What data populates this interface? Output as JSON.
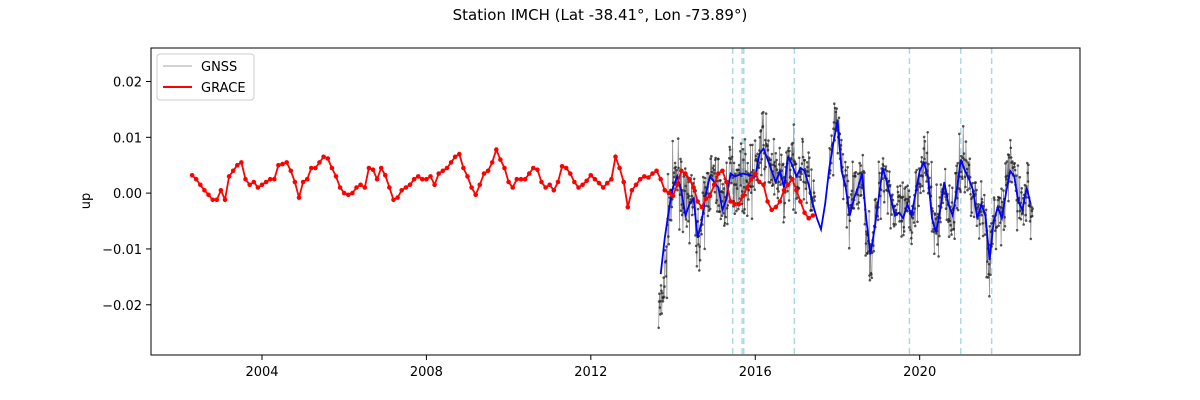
{
  "chart_data": {
    "type": "line",
    "title": "Station IMCH (Lat -38.41°, Lon -73.89°)",
    "xlabel": "",
    "ylabel": "up",
    "xlim": [
      2001.3,
      2023.9
    ],
    "ylim": [
      -0.029,
      0.026
    ],
    "x_ticks": [
      2004,
      2008,
      2012,
      2016,
      2020
    ],
    "y_ticks": [
      -0.02,
      -0.01,
      0.0,
      0.01,
      0.02
    ],
    "x_tick_labels": [
      "2004",
      "2008",
      "2012",
      "2016",
      "2020"
    ],
    "y_tick_labels": [
      "−0.02",
      "−0.01",
      "0.00",
      "0.01",
      "0.02"
    ],
    "legend_position": "top-left",
    "legend": [
      "GNSS",
      "GRACE"
    ],
    "colors": {
      "gnss": "#555555",
      "gnss_points": "#222222",
      "grace": "#ff0000",
      "gnss_smooth": "#0000ff",
      "event_lines": "#add8e6"
    },
    "vertical_event_lines": [
      2015.45,
      2015.68,
      2015.72,
      2016.95,
      2019.75,
      2021.0,
      2021.75
    ],
    "series": [
      {
        "name": "GRACE",
        "style": "line-with-markers",
        "x": [
          2002.3,
          2002.4,
          2002.5,
          2002.6,
          2002.7,
          2002.8,
          2002.9,
          2003.0,
          2003.1,
          2003.2,
          2003.3,
          2003.4,
          2003.5,
          2003.6,
          2003.7,
          2003.8,
          2003.9,
          2004.0,
          2004.1,
          2004.2,
          2004.3,
          2004.4,
          2004.5,
          2004.6,
          2004.7,
          2004.8,
          2004.9,
          2005.0,
          2005.1,
          2005.2,
          2005.3,
          2005.4,
          2005.5,
          2005.6,
          2005.7,
          2005.8,
          2005.9,
          2006.0,
          2006.1,
          2006.2,
          2006.3,
          2006.4,
          2006.5,
          2006.6,
          2006.7,
          2006.8,
          2006.9,
          2007.0,
          2007.1,
          2007.2,
          2007.3,
          2007.4,
          2007.5,
          2007.6,
          2007.7,
          2007.8,
          2007.9,
          2008.0,
          2008.1,
          2008.2,
          2008.3,
          2008.4,
          2008.5,
          2008.6,
          2008.7,
          2008.8,
          2008.9,
          2009.0,
          2009.1,
          2009.2,
          2009.3,
          2009.4,
          2009.5,
          2009.6,
          2009.7,
          2009.8,
          2009.9,
          2010.0,
          2010.1,
          2010.2,
          2010.3,
          2010.4,
          2010.5,
          2010.6,
          2010.7,
          2010.8,
          2010.9,
          2011.0,
          2011.1,
          2011.2,
          2011.3,
          2011.4,
          2011.5,
          2011.6,
          2011.7,
          2011.8,
          2011.9,
          2012.0,
          2012.1,
          2012.2,
          2012.3,
          2012.4,
          2012.5,
          2012.6,
          2012.7,
          2012.8,
          2012.9,
          2013.0,
          2013.1,
          2013.2,
          2013.3,
          2013.4,
          2013.5,
          2013.6,
          2013.7,
          2013.8,
          2013.9,
          2014.0,
          2014.1,
          2014.2,
          2014.3,
          2014.4,
          2014.5,
          2014.6,
          2014.7,
          2014.8,
          2014.9,
          2015.0,
          2015.1,
          2015.2,
          2015.3,
          2015.4,
          2015.5,
          2015.6,
          2015.7,
          2015.8,
          2015.9,
          2016.0,
          2016.1,
          2016.2,
          2016.3,
          2016.4,
          2016.5,
          2016.6,
          2016.7,
          2016.8,
          2016.9,
          2017.0,
          2017.1,
          2017.2,
          2017.3,
          2017.4
        ],
        "y": [
          0.0032,
          0.0025,
          0.0015,
          0.0005,
          -0.0003,
          -0.0012,
          -0.0012,
          0.0005,
          -0.0012,
          0.003,
          0.004,
          0.005,
          0.0055,
          0.0025,
          0.0015,
          0.002,
          0.001,
          0.0015,
          0.002,
          0.0025,
          0.0025,
          0.005,
          0.0052,
          0.0055,
          0.004,
          0.002,
          -0.0008,
          0.002,
          0.0025,
          0.0045,
          0.0045,
          0.0055,
          0.0065,
          0.0062,
          0.0045,
          0.003,
          0.001,
          0.0,
          -0.0003,
          0.0,
          0.001,
          0.0015,
          0.001,
          0.0045,
          0.0042,
          0.0025,
          0.0045,
          0.0032,
          0.001,
          -0.0012,
          -0.0008,
          0.0005,
          0.001,
          0.0015,
          0.0025,
          0.003,
          0.0025,
          0.0025,
          0.003,
          0.0015,
          0.0035,
          0.004,
          0.0045,
          0.0055,
          0.0065,
          0.007,
          0.0045,
          0.003,
          0.001,
          -0.0003,
          0.0015,
          0.0035,
          0.004,
          0.0055,
          0.0078,
          0.006,
          0.0045,
          0.002,
          0.001,
          0.0025,
          0.0025,
          0.0025,
          0.0035,
          0.0045,
          0.0042,
          0.002,
          0.001,
          0.0015,
          0.0005,
          0.002,
          0.0048,
          0.0045,
          0.0035,
          0.002,
          0.001,
          0.0015,
          0.0022,
          0.0032,
          0.0025,
          0.0018,
          0.001,
          0.0018,
          0.0025,
          0.0065,
          0.0045,
          0.002,
          -0.0025,
          0.0005,
          0.0015,
          0.0025,
          0.003,
          0.0028,
          0.0035,
          0.004,
          0.0025,
          0.0005,
          0.0,
          -0.0005,
          0.0015,
          0.004,
          0.0035,
          0.0025,
          0.001,
          -0.0015,
          -0.0025,
          -0.001,
          -0.0005,
          0.0015,
          0.0035,
          0.004,
          0.002,
          -0.0015,
          -0.002,
          -0.002,
          -0.0005,
          0.001,
          0.0025,
          0.0035,
          0.002,
          0.0015,
          -0.0015,
          -0.003,
          -0.0025,
          -0.0015,
          0.0005,
          0.0015,
          0.0025,
          0.0005,
          -0.0015,
          -0.0035,
          -0.0045,
          -0.004
        ]
      },
      {
        "name": "",
        "style": "line",
        "x": [
          2013.7,
          2013.8,
          2013.9,
          2014.0,
          2014.1,
          2014.2,
          2014.3,
          2014.4,
          2014.5,
          2014.6,
          2014.7,
          2014.8,
          2014.9,
          2015.0,
          2015.1,
          2015.2,
          2015.3,
          2015.4,
          2015.5,
          2015.7,
          2016.0,
          2016.1,
          2016.2,
          2016.3,
          2016.4,
          2016.5,
          2016.6,
          2016.7,
          2016.8,
          2016.9,
          2017.0,
          2017.1,
          2017.2,
          2017.3,
          2017.4,
          2017.5,
          2017.6,
          2017.7,
          2017.8,
          2017.9,
          2018.0,
          2018.1,
          2018.2,
          2018.3,
          2018.4,
          2018.5,
          2018.6,
          2018.7,
          2018.8,
          2018.9,
          2019.0,
          2019.1,
          2019.2,
          2019.3,
          2019.4,
          2019.5,
          2019.6,
          2019.7,
          2019.8,
          2019.9,
          2020.0,
          2020.1,
          2020.2,
          2020.3,
          2020.4,
          2020.5,
          2020.6,
          2020.7,
          2020.8,
          2020.9,
          2021.0,
          2021.1,
          2021.2,
          2021.3,
          2021.4,
          2021.5,
          2021.6,
          2021.7,
          2021.8,
          2021.9,
          2022.0,
          2022.1,
          2022.2,
          2022.3,
          2022.4,
          2022.5,
          2022.6,
          2022.7
        ],
        "y": [
          -0.0145,
          -0.008,
          -0.003,
          0.001,
          0.003,
          0.0005,
          -0.004,
          -0.002,
          -0.001,
          -0.008,
          -0.005,
          0.0,
          0.003,
          0.002,
          0.001,
          -0.003,
          -0.001,
          0.0035,
          0.003,
          0.0035,
          0.003,
          0.007,
          0.008,
          0.006,
          0.004,
          0.002,
          0.004,
          0.001,
          0.0065,
          0.005,
          0.003,
          0.0045,
          0.004,
          0.0015,
          -0.002,
          -0.0045,
          -0.0065,
          -0.002,
          0.0045,
          0.009,
          0.013,
          0.004,
          0.001,
          -0.004,
          -0.001,
          0.001,
          0.0035,
          -0.0045,
          -0.011,
          -0.0065,
          -0.001,
          0.0045,
          0.002,
          -0.001,
          -0.004,
          -0.0035,
          -0.0045,
          -0.002,
          -0.004,
          0.0,
          0.004,
          0.0055,
          0.003,
          -0.0045,
          -0.007,
          -0.003,
          0.002,
          -0.002,
          -0.004,
          0.0005,
          0.006,
          0.004,
          0.0025,
          0.0005,
          -0.0045,
          -0.002,
          -0.004,
          -0.012,
          -0.005,
          -0.0025,
          -0.0045,
          0.0,
          0.004,
          0.003,
          -0.0015,
          -0.003,
          0.001,
          -0.002
        ]
      },
      {
        "name": "GNSS",
        "style": "noisy-daily",
        "x_start": 2013.65,
        "x_end": 2022.75,
        "gap": [
          2017.45,
          2017.8
        ],
        "amplitude": 0.0055,
        "note_seed": 7
      }
    ]
  }
}
